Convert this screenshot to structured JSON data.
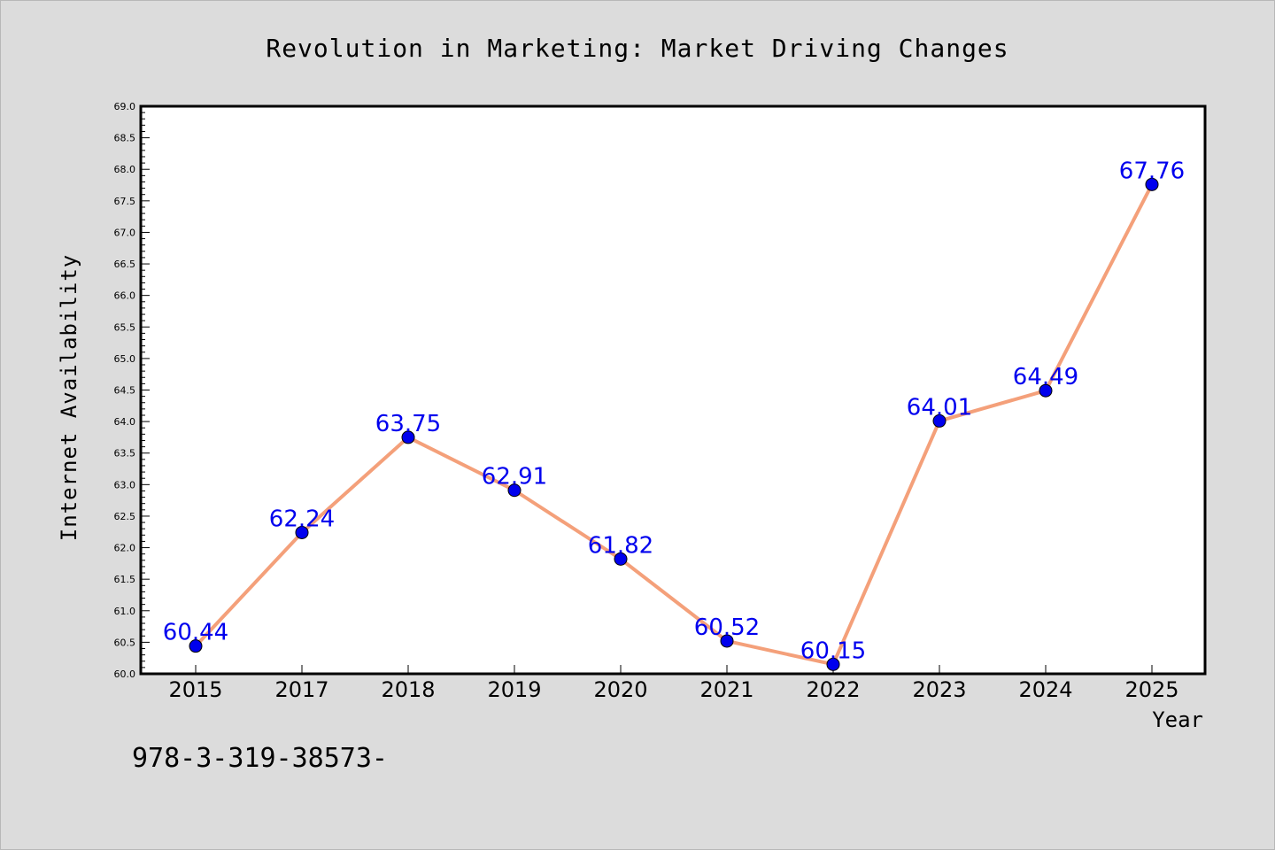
{
  "chart_data": {
    "type": "line",
    "title": "Revolution in Marketing: Market Driving Changes",
    "xlabel": "Year",
    "ylabel": "Internet Availability",
    "categories": [
      "2015",
      "2017",
      "2018",
      "2019",
      "2020",
      "2021",
      "2022",
      "2023",
      "2024",
      "2025"
    ],
    "series": [
      {
        "values": [
          60.44,
          62.24,
          63.75,
          62.91,
          61.82,
          60.52,
          60.15,
          64.01,
          64.49,
          67.76
        ]
      }
    ],
    "data_labels": [
      "60.44",
      "62.24",
      "63.75",
      "62.91",
      "61.82",
      "60.52",
      "60.15",
      "64.01",
      "64.49",
      "67.76"
    ],
    "ylim": [
      60.0,
      69.0
    ],
    "y_major_step": 0.5,
    "grid": false,
    "legend": "none",
    "annotation": "978-3-319-38573-",
    "colors": {
      "background": "#dcdcdc",
      "plot_background": "#ffffff",
      "line": "#f4a07a",
      "marker": "#0000ee",
      "data_label": "#0000ee",
      "text": "#000000"
    }
  }
}
